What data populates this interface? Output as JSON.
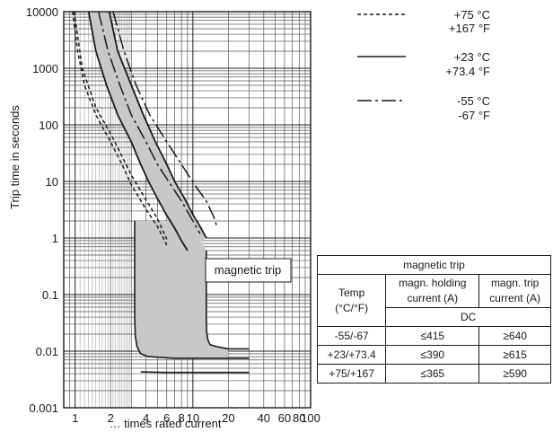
{
  "chart_data": {
    "type": "line",
    "xlabel": "… times rated current",
    "ylabel": "Trip time in seconds",
    "xscale": "log",
    "yscale": "log",
    "xlim": [
      0.8,
      100
    ],
    "ylim": [
      0.001,
      10000
    ],
    "xticks": [
      {
        "v": 1,
        "label": "1"
      },
      {
        "v": 2,
        "label": "2"
      },
      {
        "v": 4,
        "label": "4"
      },
      {
        "v": 6,
        "label": "6"
      },
      {
        "v": 8,
        "label": "8"
      },
      {
        "v": 10,
        "label": "10"
      },
      {
        "v": 20,
        "label": "20"
      },
      {
        "v": 40,
        "label": "40"
      },
      {
        "v": 60,
        "label": "60"
      },
      {
        "v": 80,
        "label": "80"
      },
      {
        "v": 100,
        "label": "100"
      }
    ],
    "yticks": [
      {
        "v": 0.001,
        "label": "0.001"
      },
      {
        "v": 0.01,
        "label": "0.01"
      },
      {
        "v": 0.1,
        "label": "0.1"
      },
      {
        "v": 1,
        "label": "1"
      },
      {
        "v": 10,
        "label": "10"
      },
      {
        "v": 100,
        "label": "100"
      },
      {
        "v": 1000,
        "label": "1000"
      },
      {
        "v": 10000,
        "label": "10000"
      }
    ],
    "grid": true,
    "series": [
      {
        "name": "+75 °C / +167 °F",
        "style": "dotted",
        "curves": [
          [
            [
              0.95,
              10000
            ],
            [
              1.05,
              2000
            ],
            [
              1.2,
              500
            ],
            [
              1.5,
              150
            ],
            [
              2,
              50
            ],
            [
              2.5,
              20
            ],
            [
              3,
              8.7
            ],
            [
              4,
              3.2
            ],
            [
              5,
              1.6
            ],
            [
              6,
              0.75
            ]
          ],
          [
            [
              0.98,
              10000
            ],
            [
              1.15,
              1000
            ],
            [
              1.5,
              200
            ],
            [
              2,
              70
            ],
            [
              3,
              13
            ],
            [
              4,
              4.7
            ],
            [
              5,
              2.2
            ],
            [
              6,
              0.95
            ]
          ]
        ]
      },
      {
        "name": "+23 °C / +73.4 °F",
        "style": "solid",
        "curves": [
          [
            [
              1.3,
              10000
            ],
            [
              1.5,
              2000
            ],
            [
              1.85,
              500
            ],
            [
              2.3,
              150
            ],
            [
              3,
              50
            ],
            [
              3.6,
              20
            ],
            [
              4.2,
              10
            ],
            [
              5,
              5
            ],
            [
              6,
              2.5
            ],
            [
              7,
              1.5
            ],
            [
              8,
              0.9
            ],
            [
              9,
              0.6
            ]
          ],
          [
            [
              1.95,
              10000
            ],
            [
              2.3,
              2000
            ],
            [
              3,
              500
            ],
            [
              3.8,
              150
            ],
            [
              4.8,
              50
            ],
            [
              6,
              20
            ],
            [
              7,
              10
            ],
            [
              8.5,
              5
            ],
            [
              10,
              2.6
            ],
            [
              11.5,
              1.6
            ],
            [
              13,
              1
            ]
          ]
        ]
      },
      {
        "name": "-55 °C / -67 °F",
        "style": "dashdot",
        "curves": [
          [
            [
              1.58,
              10000
            ],
            [
              1.9,
              2000
            ],
            [
              2.4,
              500
            ],
            [
              3,
              150
            ],
            [
              4,
              50
            ],
            [
              5,
              20
            ],
            [
              6.5,
              8.7
            ],
            [
              8,
              4.5
            ],
            [
              10,
              2
            ],
            [
              11.5,
              1.2
            ]
          ],
          [
            [
              2.1,
              10000
            ],
            [
              2.6,
              2000
            ],
            [
              3.3,
              500
            ],
            [
              4.3,
              150
            ],
            [
              6,
              50
            ],
            [
              8,
              20
            ],
            [
              10.5,
              8.4
            ],
            [
              13,
              4.5
            ],
            [
              15,
              2.4
            ],
            [
              16,
              1.6
            ]
          ]
        ]
      }
    ],
    "band": {
      "upper": [
        [
          1.95,
          10000
        ],
        [
          2.3,
          2000
        ],
        [
          3,
          500
        ],
        [
          3.8,
          150
        ],
        [
          4.8,
          50
        ],
        [
          6,
          20
        ],
        [
          7,
          10
        ],
        [
          8.5,
          5
        ],
        [
          10,
          2.6
        ],
        [
          11.5,
          1.6
        ],
        [
          13,
          1
        ]
      ],
      "lower": [
        [
          1.3,
          10000
        ],
        [
          1.5,
          2000
        ],
        [
          1.85,
          500
        ],
        [
          2.3,
          150
        ],
        [
          3,
          50
        ],
        [
          3.6,
          20
        ],
        [
          4.2,
          10
        ],
        [
          5,
          5
        ],
        [
          6,
          2.5
        ],
        [
          7,
          1.5
        ],
        [
          8,
          0.9
        ],
        [
          9,
          0.6
        ]
      ]
    },
    "magnetic_region": {
      "left": [
        [
          3.2,
          2
        ],
        [
          3.2,
          0.04
        ],
        [
          3.25,
          0.018
        ],
        [
          3.35,
          0.012
        ],
        [
          3.6,
          0.009
        ],
        [
          4.2,
          0.008
        ],
        [
          7,
          0.0075
        ],
        [
          12,
          0.0075
        ],
        [
          20,
          0.0075
        ],
        [
          30,
          0.0075
        ]
      ],
      "right": [
        [
          13,
          0.6
        ],
        [
          13,
          0.04
        ],
        [
          13.1,
          0.022
        ],
        [
          13.4,
          0.016
        ],
        [
          14,
          0.013
        ],
        [
          16,
          0.012
        ],
        [
          20,
          0.011
        ],
        [
          30,
          0.011
        ]
      ],
      "bottom": [
        [
          3.6,
          0.0043
        ],
        [
          6,
          0.0042
        ],
        [
          10,
          0.0042
        ],
        [
          20,
          0.0042
        ],
        [
          30,
          0.0042
        ]
      ],
      "shade": [
        [
          3.2,
          2
        ],
        [
          9,
          2
        ],
        [
          13,
          0.6
        ],
        [
          13,
          0.04
        ],
        [
          13.1,
          0.022
        ],
        [
          13.4,
          0.016
        ],
        [
          14,
          0.013
        ],
        [
          16,
          0.012
        ],
        [
          20,
          0.011
        ],
        [
          20,
          0.0075
        ],
        [
          7,
          0.0075
        ],
        [
          4.2,
          0.008
        ],
        [
          3.6,
          0.009
        ],
        [
          3.35,
          0.012
        ],
        [
          3.25,
          0.018
        ],
        [
          3.2,
          0.04
        ]
      ]
    },
    "annotation": "magnetic trip",
    "legend_position": "top-right"
  },
  "legend": [
    {
      "line1": "+75 °C",
      "line2": "+167 °F",
      "style": "dotted"
    },
    {
      "line1": "+23 °C",
      "line2": "+73.4 °F",
      "style": "solid"
    },
    {
      "line1": "-55 °C",
      "line2": "-67 °F",
      "style": "dashdot"
    }
  ],
  "table": {
    "title": "magnetic trip",
    "col1_line1": "Temp",
    "col1_line2": "(°C/°F)",
    "col2_line1": "magn. holding",
    "col2_line2": "current (A)",
    "col3_line1": "magn. trip",
    "col3_line2": "current (A)",
    "subheader": "DC",
    "rows": [
      {
        "temp": "-55/-67",
        "holding": "≤415",
        "trip": "≥640"
      },
      {
        "temp": "+23/+73.4",
        "holding": "≤390",
        "trip": "≥615"
      },
      {
        "temp": "+75/+167",
        "holding": "≤365",
        "trip": "≥590"
      }
    ]
  },
  "colors": {
    "band": "#c8c8c8",
    "line": "#1a1a1a",
    "grid": "#444444"
  }
}
